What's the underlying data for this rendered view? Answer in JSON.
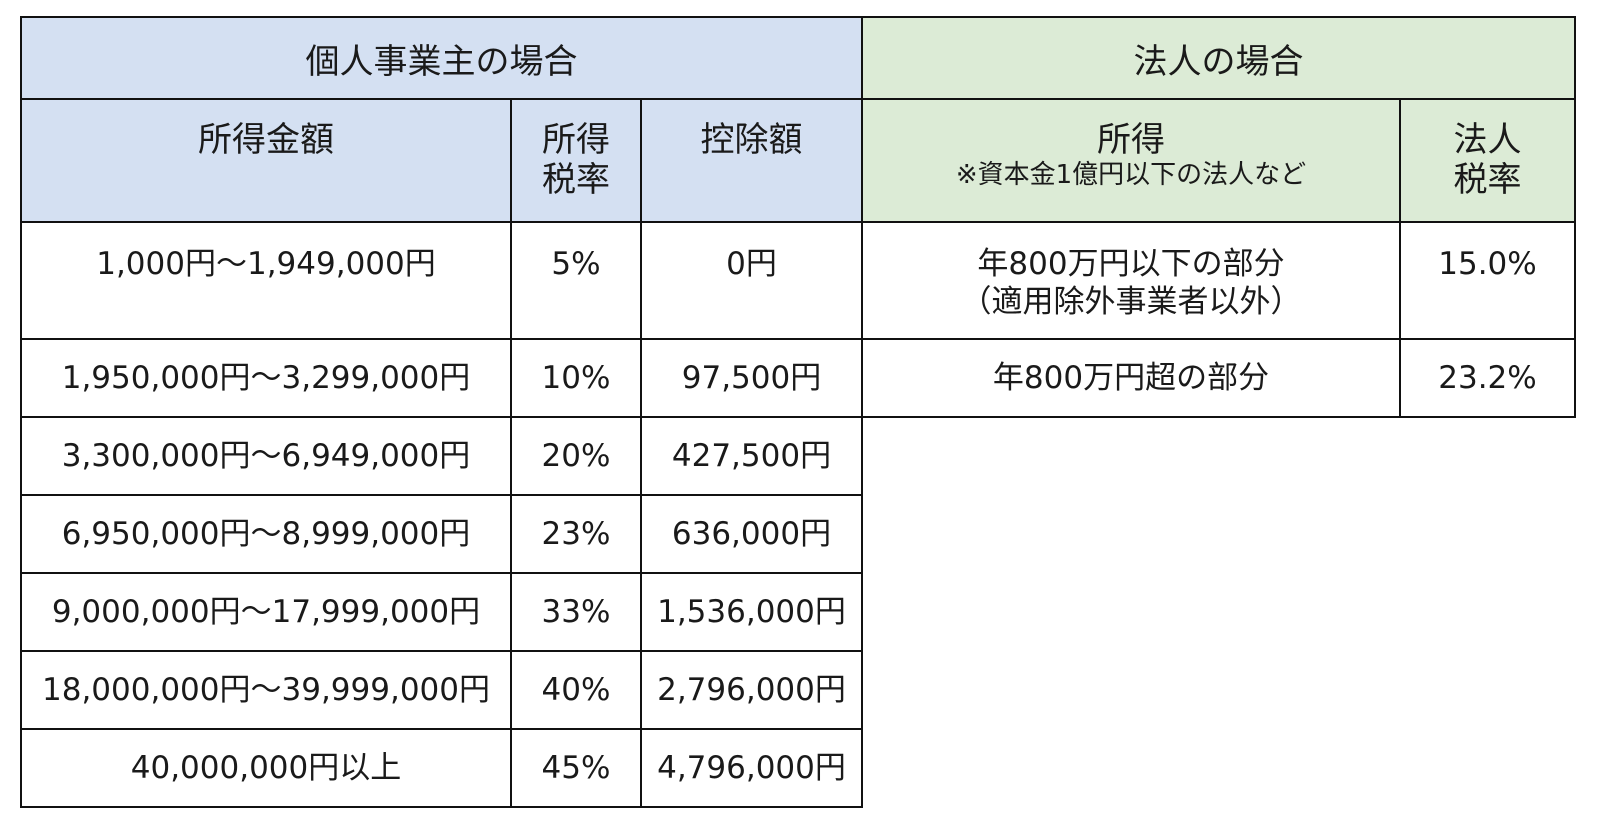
{
  "individual": {
    "title": "個人事業主の場合",
    "headers": {
      "income": "所得金額",
      "rate_line1": "所得",
      "rate_line2": "税率",
      "deduction": "控除額"
    },
    "rows": [
      {
        "income": "1,000円〜1,949,000円",
        "rate": "5%",
        "deduction": "0円"
      },
      {
        "income": "1,950,000円〜3,299,000円",
        "rate": "10%",
        "deduction": "97,500円"
      },
      {
        "income": "3,300,000円〜6,949,000円",
        "rate": "20%",
        "deduction": "427,500円"
      },
      {
        "income": "6,950,000円〜8,999,000円",
        "rate": "23%",
        "deduction": "636,000円"
      },
      {
        "income": "9,000,000円〜17,999,000円",
        "rate": "33%",
        "deduction": "1,536,000円"
      },
      {
        "income": "18,000,000円〜39,999,000円",
        "rate": "40%",
        "deduction": "2,796,000円"
      },
      {
        "income": "40,000,000円以上",
        "rate": "45%",
        "deduction": "4,796,000円"
      }
    ]
  },
  "corporate": {
    "title": "法人の場合",
    "headers": {
      "income": "所得",
      "income_note": "※資本金1億円以下の法人など",
      "rate_line1": "法人",
      "rate_line2": "税率"
    },
    "rows": [
      {
        "income_line1": "年800万円以下の部分",
        "income_line2": "（適用除外事業者以外）",
        "rate": "15.0%"
      },
      {
        "income_line1": "年800万円超の部分",
        "rate": "23.2%"
      }
    ]
  }
}
